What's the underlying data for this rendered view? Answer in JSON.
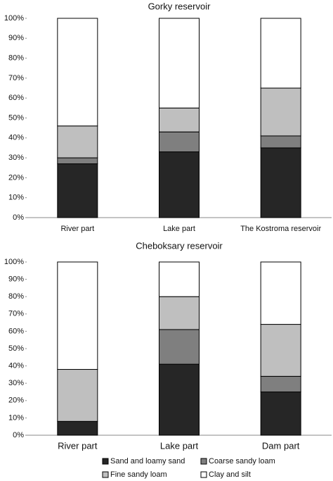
{
  "chart_data": [
    {
      "type": "stacked_bar",
      "title": "Gorky reservoir",
      "categories": [
        "River part",
        "Lake part",
        "The Kostroma reservoir"
      ],
      "series": [
        {
          "color": "#262626",
          "values": [
            27,
            33,
            35
          ]
        },
        {
          "color": "#7f7f7f",
          "values": [
            3,
            10,
            6
          ]
        },
        {
          "color": "#bfbfbf",
          "values": [
            16,
            12,
            24
          ]
        },
        {
          "color": "#ffffff",
          "values": [
            54,
            45,
            35
          ]
        }
      ],
      "ylim": [
        0,
        100
      ],
      "yticks": [
        {
          "value": 0,
          "label": "0%"
        },
        {
          "value": 10,
          "label": "10%"
        },
        {
          "value": 20,
          "label": "20%"
        },
        {
          "value": 30,
          "label": "30%"
        },
        {
          "value": 40,
          "label": "40%"
        },
        {
          "value": 50,
          "label": "50%"
        },
        {
          "value": 60,
          "label": "60%"
        },
        {
          "value": 70,
          "label": "70%"
        },
        {
          "value": 80,
          "label": "80%"
        },
        {
          "value": 90,
          "label": "90%"
        },
        {
          "value": 100,
          "label": "100%"
        }
      ]
    },
    {
      "type": "stacked_bar",
      "title": "Cheboksary reservoir",
      "categories": [
        "River part",
        "Lake part",
        "Dam part"
      ],
      "series": [
        {
          "name": "Sand and loamy sand",
          "color": "#262626",
          "values": [
            8,
            41,
            25
          ]
        },
        {
          "name": "Coarse sandy loam",
          "color": "#7f7f7f",
          "values": [
            0,
            20,
            9
          ]
        },
        {
          "name": "Fine sandy loam",
          "color": "#bfbfbf",
          "values": [
            30,
            19,
            30
          ]
        },
        {
          "name": "Clay and silt",
          "color": "#ffffff",
          "values": [
            62,
            20,
            36
          ]
        }
      ],
      "ylim": [
        0,
        100
      ],
      "yticks": [
        {
          "value": 0,
          "label": "0%"
        },
        {
          "value": 10,
          "label": "10%"
        },
        {
          "value": 20,
          "label": "20%"
        },
        {
          "value": 30,
          "label": "30%"
        },
        {
          "value": 40,
          "label": "40%"
        },
        {
          "value": 50,
          "label": "50%"
        },
        {
          "value": 60,
          "label": "60%"
        },
        {
          "value": 70,
          "label": "70%"
        },
        {
          "value": 80,
          "label": "80%"
        },
        {
          "value": 90,
          "label": "90%"
        },
        {
          "value": 100,
          "label": "100%"
        }
      ],
      "legend": "bottom"
    }
  ]
}
